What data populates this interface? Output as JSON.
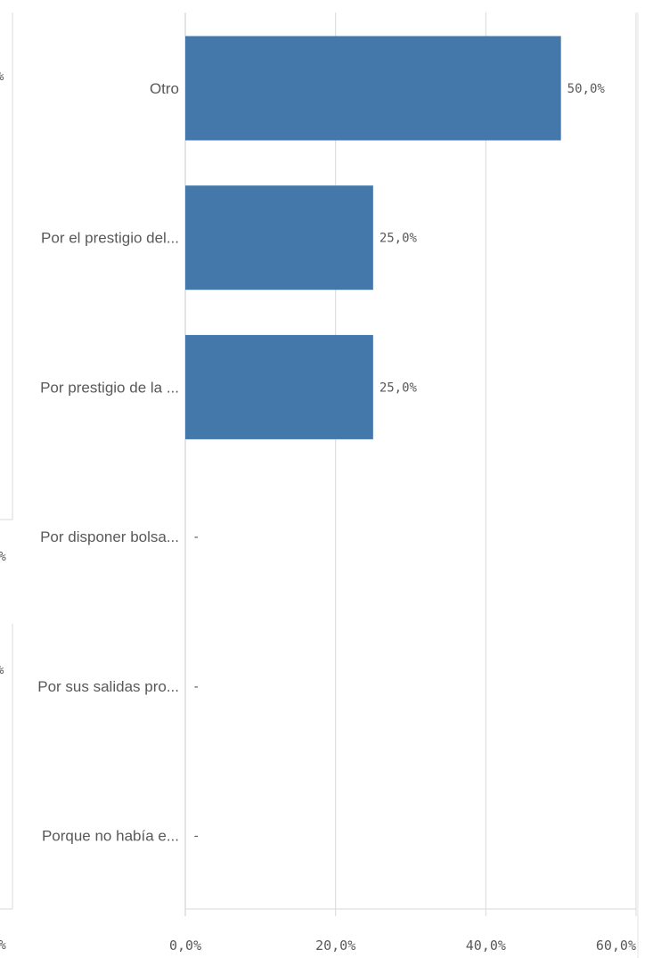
{
  "chart_data": {
    "type": "bar",
    "orientation": "horizontal",
    "categories": [
      "Otro",
      "Por el prestigio del...",
      "Por prestigio de la ...",
      "Por disponer bolsa...",
      "Por sus salidas pro...",
      "Porque no había e..."
    ],
    "values": [
      50.0,
      25.0,
      25.0,
      null,
      null,
      null
    ],
    "value_labels": [
      "50,0%",
      "25,0%",
      "25,0%",
      "-",
      "-",
      "-"
    ],
    "xlim": [
      0,
      60
    ],
    "xticks": [
      0,
      20,
      40,
      60
    ],
    "xtick_labels": [
      "0,0%",
      "20,0%",
      "40,0%",
      "60,0%"
    ],
    "grid": "vertical",
    "bar_color": "#4477aa"
  },
  "neighbor_fragments": [
    "%",
    "0%",
    "%",
    "0%"
  ]
}
